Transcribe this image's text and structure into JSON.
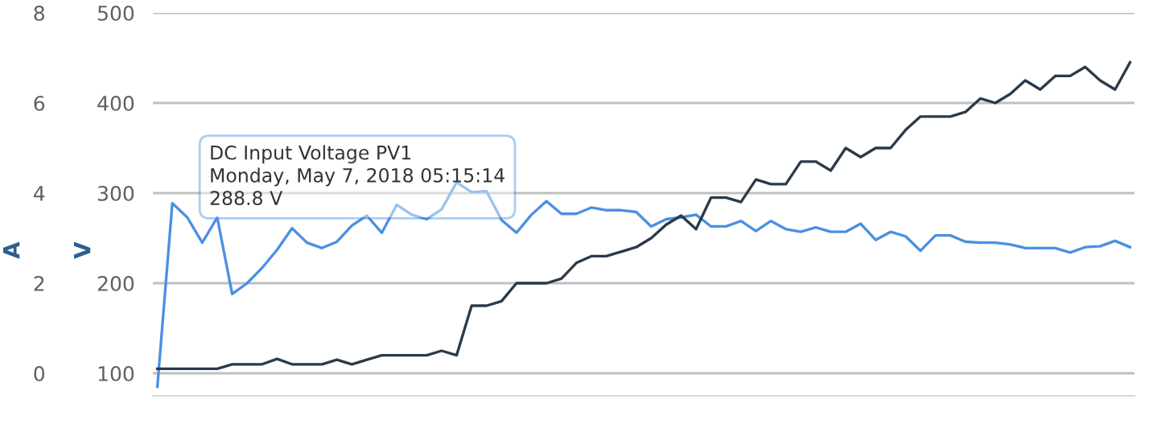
{
  "chart_data": {
    "type": "line",
    "ylabel": "V",
    "y2label": "A",
    "categories": [
      null,
      null,
      null,
      null,
      null,
      null,
      null,
      null,
      null,
      null,
      null,
      null,
      null,
      null,
      null,
      null,
      null,
      null,
      null,
      null,
      null,
      null,
      null,
      null,
      null,
      null,
      null,
      null,
      null,
      null,
      null,
      null,
      null,
      null,
      null,
      null,
      null,
      null,
      null,
      null,
      null,
      null,
      null,
      null,
      null,
      null,
      null,
      null,
      null,
      null,
      null,
      null,
      null,
      null,
      null,
      null,
      null,
      null,
      null,
      null,
      null,
      null,
      null,
      null,
      null,
      null
    ],
    "series": [
      {
        "color": "#4a90e2",
        "values": [
          85,
          288.8,
          273,
          245,
          273,
          188,
          200,
          217,
          237,
          261,
          245,
          239,
          246,
          264,
          275,
          256,
          287,
          276,
          271,
          282,
          312,
          301,
          302,
          270,
          256,
          276,
          291,
          277,
          277,
          284,
          281,
          281,
          279,
          263,
          271,
          273,
          276,
          263,
          263,
          269,
          258,
          269,
          260,
          257,
          262,
          257,
          257,
          266,
          248,
          257,
          252,
          236,
          253,
          253,
          246,
          245,
          245,
          243,
          239,
          239,
          239,
          234,
          240,
          241,
          247,
          240
        ]
      },
      {
        "color": "#2b3a4a",
        "axis": "y2",
        "values": [
          0.1,
          0.1,
          0.1,
          0.1,
          0.1,
          0.2,
          0.2,
          0.2,
          0.32,
          0.2,
          0.2,
          0.2,
          0.3,
          0.2,
          0.3,
          0.4,
          0.4,
          0.4,
          0.4,
          0.5,
          0.4,
          1.5,
          1.5,
          1.6,
          2.0,
          2.0,
          2.0,
          2.1,
          2.45,
          2.6,
          2.6,
          2.7,
          2.8,
          3.0,
          3.3,
          3.5,
          3.2,
          3.9,
          3.9,
          3.8,
          4.3,
          4.2,
          4.2,
          4.7,
          4.7,
          4.5,
          5.0,
          4.8,
          5.0,
          5.0,
          5.4,
          5.7,
          5.7,
          5.7,
          5.8,
          6.1,
          6.0,
          6.2,
          6.5,
          6.3,
          6.6,
          6.6,
          6.8,
          6.5,
          6.3,
          6.9
        ]
      }
    ],
    "ylim": [
      75,
      500
    ],
    "yticks": [
      100,
      200,
      300,
      400,
      500
    ],
    "y2lim": [
      -0.5,
      8
    ],
    "y2ticks": [
      0,
      2,
      4,
      6,
      8
    ],
    "grid": "y",
    "legend": false,
    "marker": "none",
    "line_style": "solid",
    "annotations": [
      "DC Input Voltage PV1\nMonday, May 7, 2018 05:15:14\n288.8 V"
    ]
  }
}
